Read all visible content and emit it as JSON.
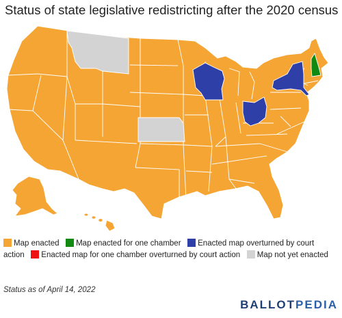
{
  "title": "Status of state legislative redistricting after the 2020 census",
  "legend": [
    {
      "label": "Map enacted",
      "color": "#f4a534"
    },
    {
      "label": "Map enacted for one chamber",
      "color": "#128a12"
    },
    {
      "label": "Enacted map overturned by court action",
      "color": "#2f3fa8"
    },
    {
      "label": "Enacted map for one chamber overturned by court action",
      "color": "#ee1111"
    },
    {
      "label": "Map not yet enacted",
      "color": "#d3d3d3"
    }
  ],
  "status_note": "Status as of April 14, 2022",
  "logo": {
    "part1": "BALLOT",
    "part2": "PEDIA"
  },
  "states": {
    "map_enacted": "Map enacted",
    "wisconsin": "Enacted map overturned by court action",
    "ohio": "Enacted map overturned by court action",
    "new_york": "Enacted map overturned by court action",
    "new_hampshire": "Map enacted for one chamber",
    "montana": "Map not yet enacted",
    "kansas": "Map not yet enacted"
  }
}
